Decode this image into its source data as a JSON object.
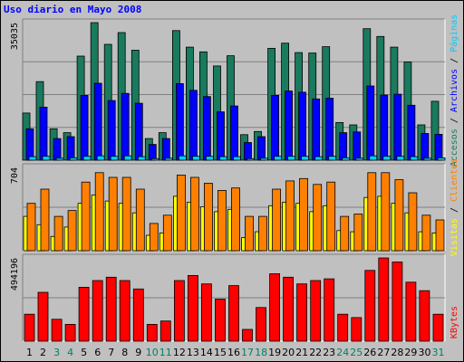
{
  "chart_data": {
    "type": "bar",
    "title": "Uso diario en Mayo 2008",
    "colors": {
      "background": "#c0c0c0",
      "frame": "#000000",
      "title": "#0000ff",
      "gridline": "#808080",
      "accesos": "#1a7a5e",
      "archivos": "#0000ff",
      "paginas": "#00ccff",
      "visitas": "#ffff00",
      "clientes": "#ff8000",
      "kbytes": "#ff0000",
      "weekday_label": "#000000",
      "weekend_label": "#008060"
    },
    "days": [
      "1",
      "2",
      "3",
      "4",
      "5",
      "6",
      "7",
      "8",
      "9",
      "10",
      "11",
      "12",
      "13",
      "14",
      "15",
      "16",
      "17",
      "18",
      "19",
      "20",
      "21",
      "22",
      "23",
      "24",
      "25",
      "26",
      "27",
      "28",
      "29",
      "30",
      "31"
    ],
    "weekend_days": [
      "3",
      "4",
      "10",
      "11",
      "17",
      "18",
      "24",
      "25",
      "31"
    ],
    "panels": [
      {
        "id": "hits",
        "max_label": "35035",
        "ymax": 35035,
        "series": [
          {
            "name": "Accesos",
            "key": "accesos",
            "values": [
              12000,
              20000,
              8000,
              7000,
              26500,
              35035,
              29500,
              32500,
              28000,
              5500,
              7000,
              33000,
              28800,
              27600,
              24000,
              26600,
              6500,
              7300,
              28500,
              29800,
              27400,
              27300,
              28900,
              9600,
              9000,
              33500,
              31500,
              28800,
              25000,
              9000,
              15000
            ]
          },
          {
            "name": "Archivos",
            "key": "archivos",
            "values": [
              8000,
              13500,
              5500,
              6000,
              16500,
              19600,
              15200,
              17000,
              14500,
              4000,
              5500,
              19500,
              17800,
              16200,
              12300,
              13800,
              4500,
              6000,
              16500,
              17600,
              17300,
              15600,
              15800,
              7000,
              7200,
              18900,
              16600,
              16800,
              14000,
              6800,
              6600
            ]
          },
          {
            "name": "Páginas",
            "key": "paginas",
            "values": [
              900,
              1000,
              500,
              600,
              1000,
              1100,
              1000,
              1100,
              900,
              400,
              500,
              1100,
              1000,
              1000,
              900,
              900,
              400,
              500,
              1000,
              1000,
              1000,
              900,
              1000,
              600,
              500,
              1100,
              1000,
              1000,
              900,
              500,
              600
            ]
          }
        ]
      },
      {
        "id": "visitors",
        "max_label": "704",
        "ymax": 704,
        "series": [
          {
            "name": "Visitas",
            "key": "visitas",
            "values": [
              290,
              220,
              120,
              200,
              400,
              470,
              420,
              400,
              320,
              130,
              150,
              460,
              410,
              370,
              330,
              350,
              110,
              160,
              380,
              410,
              400,
              330,
              380,
              170,
              160,
              450,
              460,
              400,
              320,
              160,
              150
            ]
          },
          {
            "name": "Clientes",
            "key": "clientes",
            "values": [
              400,
              520,
              290,
              340,
              580,
              660,
              620,
              620,
              520,
              230,
              300,
              640,
              620,
              570,
              510,
              530,
              290,
              290,
              520,
              590,
              610,
              560,
              580,
              290,
              310,
              660,
              660,
              600,
              490,
              300,
              260
            ]
          }
        ]
      },
      {
        "id": "kbytes",
        "max_label": "494196",
        "ymax": 494196,
        "series": [
          {
            "name": "KBytes",
            "key": "kbytes",
            "values": [
              160000,
              290000,
              130000,
              100000,
              320000,
              360000,
              380000,
              360000,
              310000,
              100000,
              120000,
              360000,
              390000,
              340000,
              250000,
              330000,
              70000,
              200000,
              400000,
              380000,
              340000,
              360000,
              370000,
              160000,
              140000,
              420000,
              494196,
              470000,
              350000,
              300000,
              160000
            ]
          }
        ]
      }
    ],
    "right_legend_hits": [
      {
        "text": "Accesos",
        "key": "accesos"
      },
      {
        "text": " / ",
        "key": "sep"
      },
      {
        "text": "Archivos",
        "key": "archivos"
      },
      {
        "text": " / ",
        "key": "sep"
      },
      {
        "text": "Páginas",
        "key": "paginas"
      }
    ],
    "right_legend_visitors": [
      {
        "text": "Visitas",
        "key": "visitas"
      },
      {
        "text": " / ",
        "key": "sep"
      },
      {
        "text": "Clientes",
        "key": "clientes"
      }
    ],
    "right_legend_kbytes": [
      {
        "text": "KBytes",
        "key": "kbytes"
      }
    ]
  }
}
